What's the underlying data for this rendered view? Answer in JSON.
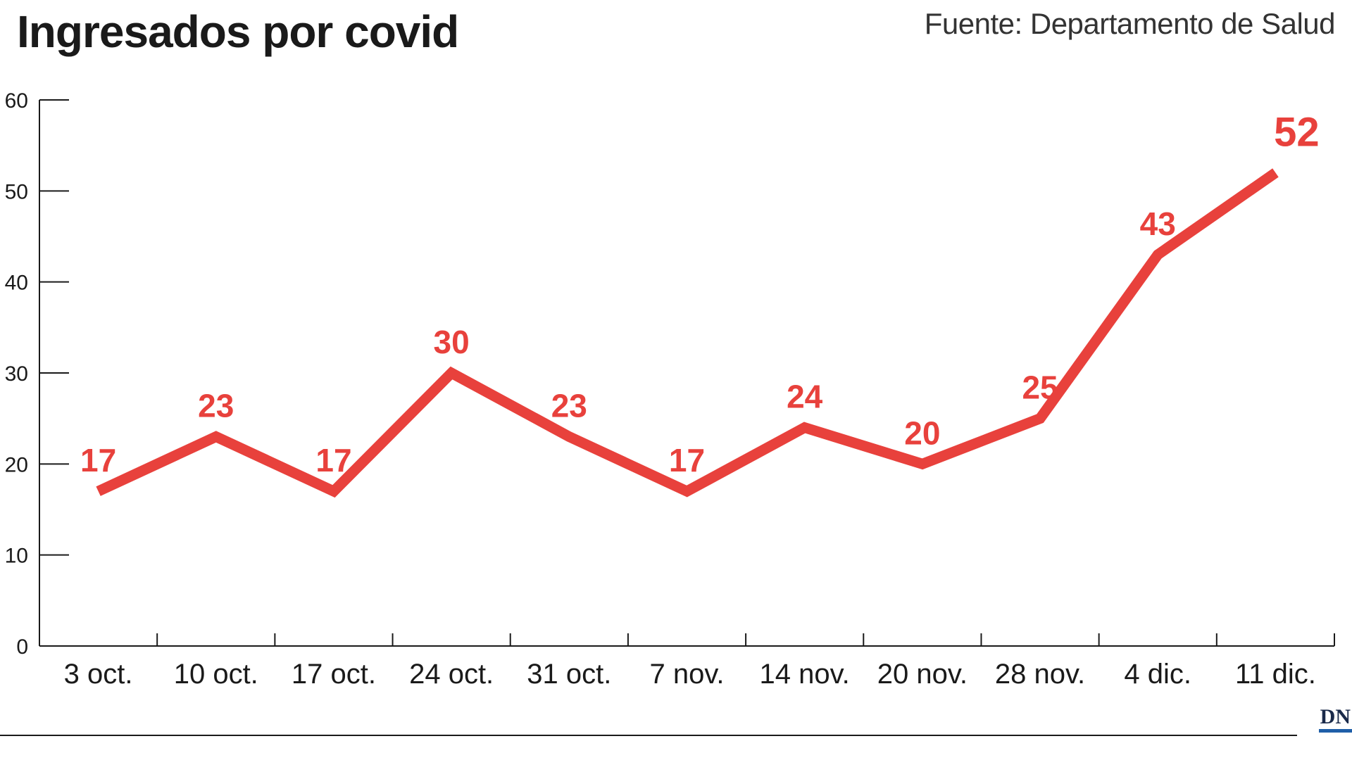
{
  "header": {
    "title": "Ingresados por covid",
    "source": "Fuente: Departamento de Salud"
  },
  "brand": {
    "logo_text": "DN",
    "logo_color": "#1a2a4a",
    "accent_color": "#1f5fa8"
  },
  "chart_data": {
    "type": "line",
    "title": "Ingresados por covid",
    "xlabel": "",
    "ylabel": "",
    "categories": [
      "3 oct.",
      "10 oct.",
      "17 oct.",
      "24 oct.",
      "31 oct.",
      "7 nov.",
      "14 nov.",
      "20 nov.",
      "28 nov.",
      "4 dic.",
      "11 dic."
    ],
    "series": [
      {
        "values": [
          17,
          23,
          17,
          30,
          23,
          17,
          24,
          20,
          25,
          43,
          52
        ],
        "color": "#e8413c"
      }
    ],
    "ylim": [
      0,
      60
    ],
    "yticks": [
      0,
      10,
      20,
      30,
      40,
      50,
      60
    ],
    "grid": false,
    "legend": "none",
    "data_labels": true
  }
}
